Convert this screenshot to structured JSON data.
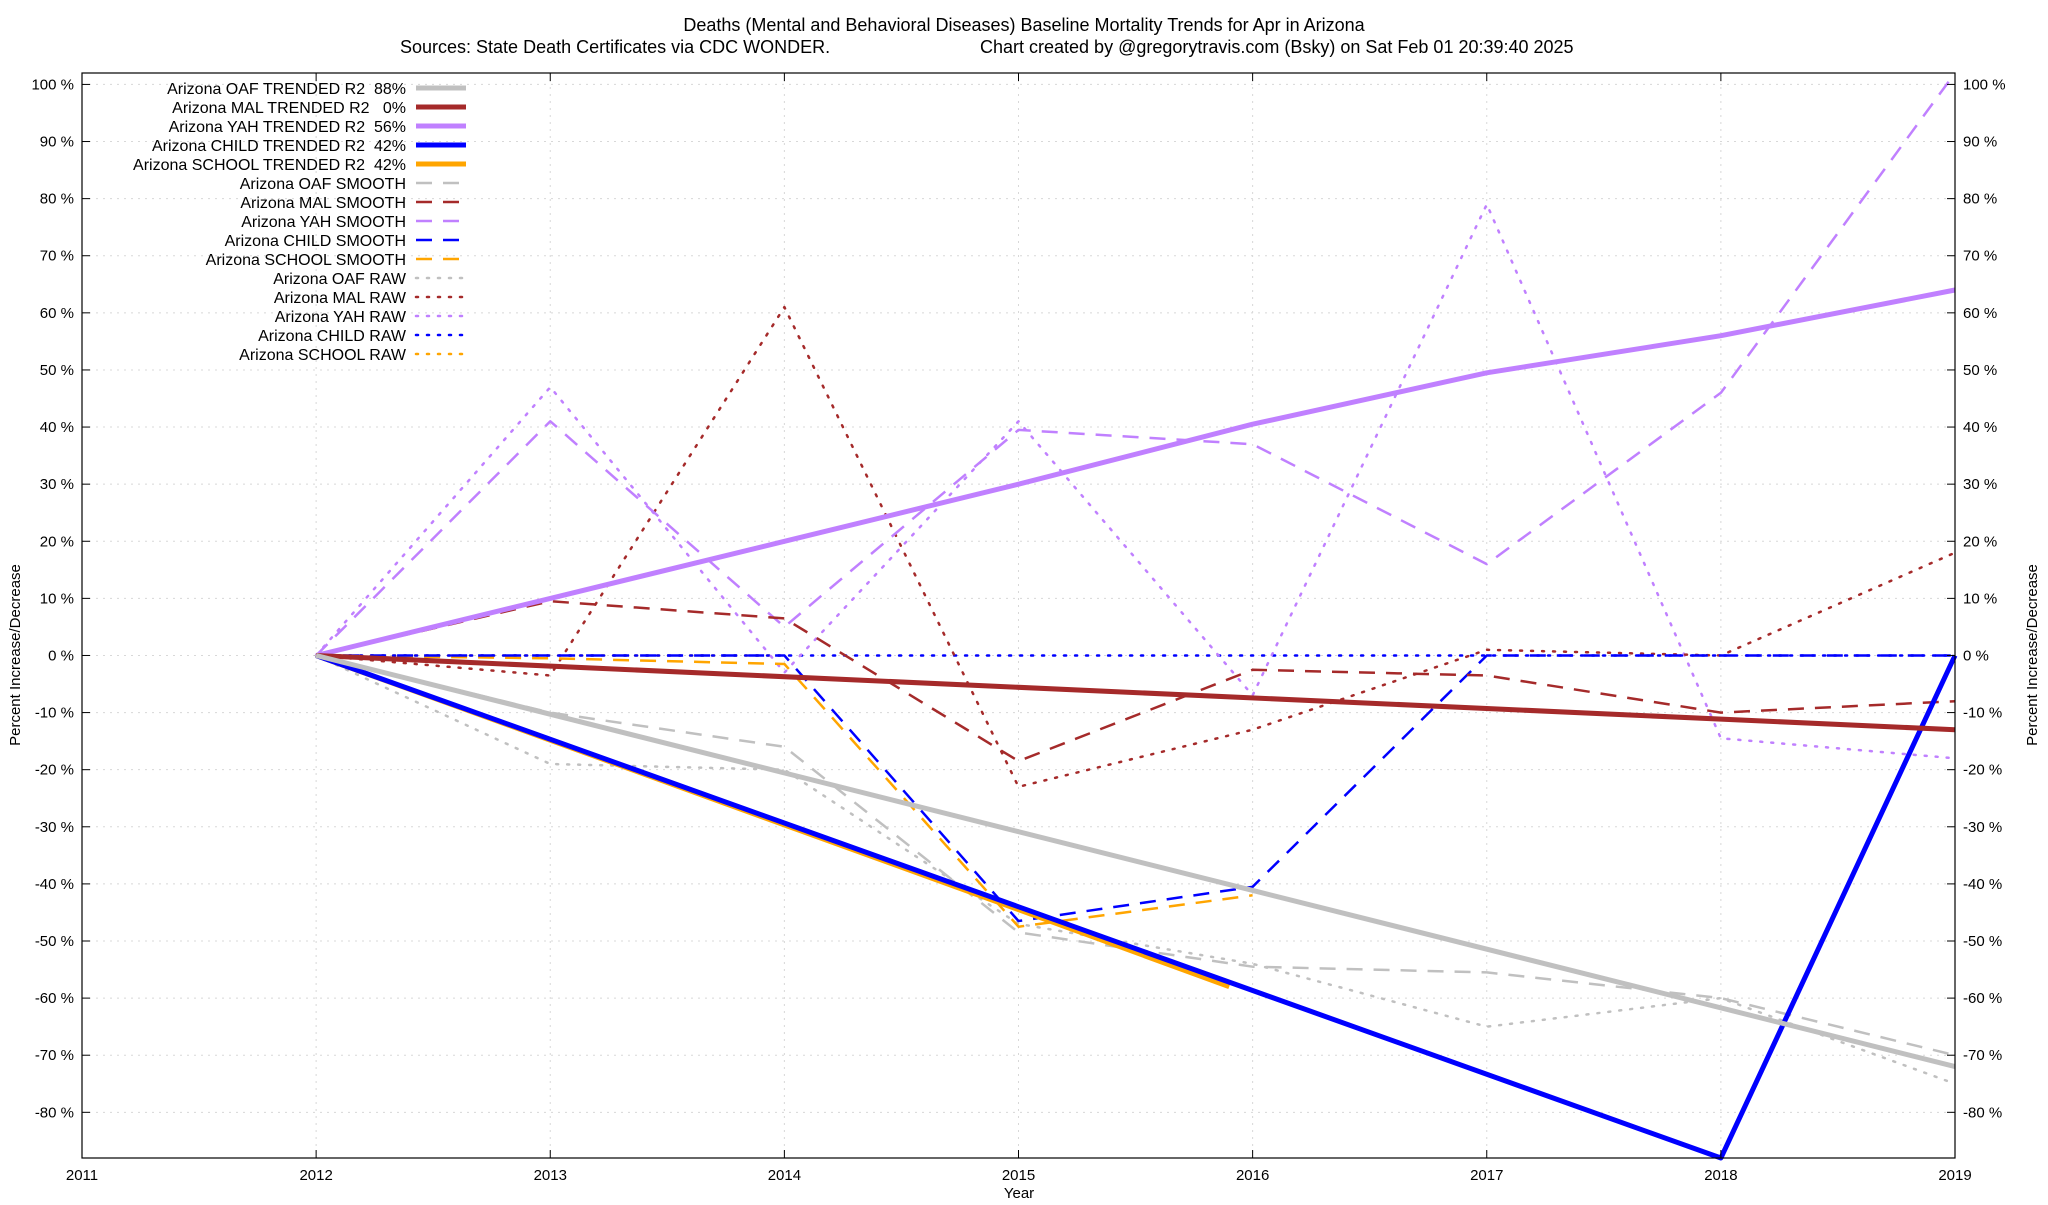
{
  "chart_data": {
    "type": "line",
    "title": "Deaths (Mental and Behavioral Diseases)  Baseline Mortality Trends for Apr in Arizona",
    "subtitle_left": "Sources: State Death Certificates via CDC WONDER.",
    "subtitle_right": "Chart created by @gregorytravis.com (Bsky) on Sat Feb 01 20:39:40 2025",
    "xlabel": "Year",
    "ylabel": "Percent Increase/Decrease",
    "ylabel_right": "Percent Increase/Decrease",
    "xlim": [
      2011,
      2019
    ],
    "ylim": [
      -88,
      102
    ],
    "x_ticks": [
      2011,
      2012,
      2013,
      2014,
      2015,
      2016,
      2017,
      2018,
      2019
    ],
    "y_ticks": [
      100,
      90,
      80,
      70,
      60,
      50,
      40,
      30,
      20,
      10,
      0,
      -10,
      -20,
      -30,
      -40,
      -50,
      -60,
      -70,
      -80
    ],
    "y_tick_suffix": " %",
    "grid": true,
    "legend_position": "top-left",
    "series": [
      {
        "name": "Arizona OAF TRENDED R2  88%",
        "style": "solid",
        "width": 5,
        "color": "#c0c0c0",
        "x": [
          2012,
          2019
        ],
        "y": [
          0,
          -72
        ]
      },
      {
        "name": "Arizona MAL TRENDED R2   0%",
        "style": "solid",
        "width": 5,
        "color": "#a52a2a",
        "x": [
          2012,
          2019
        ],
        "y": [
          0,
          -13
        ]
      },
      {
        "name": "Arizona YAH TRENDED R2  56%",
        "style": "solid",
        "width": 5,
        "color": "#c080ff",
        "x": [
          2012,
          2013,
          2014,
          2015,
          2016,
          2017,
          2018,
          2019
        ],
        "y": [
          0,
          10,
          20,
          30,
          40.5,
          49.5,
          56,
          64
        ]
      },
      {
        "name": "Arizona CHILD TRENDED R2  42%",
        "style": "solid",
        "width": 5,
        "color": "#0000ff",
        "x": [
          2012,
          2018,
          2019
        ],
        "y": [
          0,
          -88,
          0
        ]
      },
      {
        "name": "Arizona SCHOOL TRENDED R2  42%",
        "style": "solid",
        "width": 5,
        "color": "#ffa500",
        "x": [
          2012,
          2015,
          2015.9
        ],
        "y": [
          0,
          -44.5,
          -58
        ]
      },
      {
        "name": "Arizona OAF SMOOTH",
        "style": "dashed",
        "width": 2.5,
        "color": "#c0c0c0",
        "x": [
          2012,
          2013,
          2014,
          2015,
          2016,
          2017,
          2018,
          2019
        ],
        "y": [
          0,
          -10,
          -16,
          -48.5,
          -54.5,
          -55.5,
          -60,
          -70
        ]
      },
      {
        "name": "Arizona MAL SMOOTH",
        "style": "dashed",
        "width": 2.5,
        "color": "#a52a2a",
        "x": [
          2012,
          2013,
          2014,
          2015,
          2016,
          2017,
          2018,
          2019
        ],
        "y": [
          0,
          9.5,
          6.5,
          -18.5,
          -2.5,
          -3.5,
          -10,
          -8
        ]
      },
      {
        "name": "Arizona YAH SMOOTH",
        "style": "dashed",
        "width": 2.5,
        "color": "#c080ff",
        "x": [
          2012,
          2013,
          2014,
          2015,
          2016,
          2017,
          2018,
          2019
        ],
        "y": [
          0,
          41,
          5,
          39.5,
          37,
          16,
          46,
          102
        ]
      },
      {
        "name": "Arizona CHILD SMOOTH",
        "style": "dashed",
        "width": 2.5,
        "color": "#0000ff",
        "x": [
          2012,
          2013,
          2014,
          2015,
          2016,
          2017,
          2018,
          2019
        ],
        "y": [
          0,
          0,
          0,
          -46.5,
          -40.5,
          0,
          0,
          0
        ]
      },
      {
        "name": "Arizona SCHOOL SMOOTH",
        "style": "dashed",
        "width": 2.5,
        "color": "#ffa500",
        "x": [
          2012,
          2013,
          2014,
          2015,
          2016
        ],
        "y": [
          0,
          -0.5,
          -1.5,
          -47.5,
          -42
        ]
      },
      {
        "name": "Arizona OAF RAW",
        "style": "dotted",
        "width": 2.5,
        "color": "#c0c0c0",
        "x": [
          2012,
          2013,
          2014,
          2015,
          2016,
          2017,
          2018,
          2019
        ],
        "y": [
          0,
          -19,
          -20,
          -47,
          -54,
          -65,
          -60,
          -75
        ]
      },
      {
        "name": "Arizona MAL RAW",
        "style": "dotted",
        "width": 2.5,
        "color": "#a52a2a",
        "x": [
          2012,
          2013,
          2014,
          2015,
          2016,
          2017,
          2018,
          2019
        ],
        "y": [
          0,
          -3.5,
          61,
          -23,
          -13,
          1,
          0,
          18
        ]
      },
      {
        "name": "Arizona YAH RAW",
        "style": "dotted",
        "width": 2.5,
        "color": "#c080ff",
        "x": [
          2012,
          2013,
          2014,
          2015,
          2016,
          2017,
          2018,
          2019
        ],
        "y": [
          0,
          47,
          -3,
          41,
          -7,
          79,
          -14.5,
          -18
        ]
      },
      {
        "name": "Arizona CHILD RAW",
        "style": "dotted",
        "width": 2.5,
        "color": "#0000ff",
        "x": [
          2012,
          2013,
          2014,
          2015,
          2016,
          2017,
          2018,
          2019
        ],
        "y": [
          0,
          0,
          0,
          0,
          0,
          0,
          0,
          0
        ]
      },
      {
        "name": "Arizona SCHOOL RAW",
        "style": "dotted",
        "width": 2.5,
        "color": "#ffa500",
        "x": [
          2012,
          2013,
          2014
        ],
        "y": [
          0,
          0,
          0
        ]
      }
    ]
  }
}
